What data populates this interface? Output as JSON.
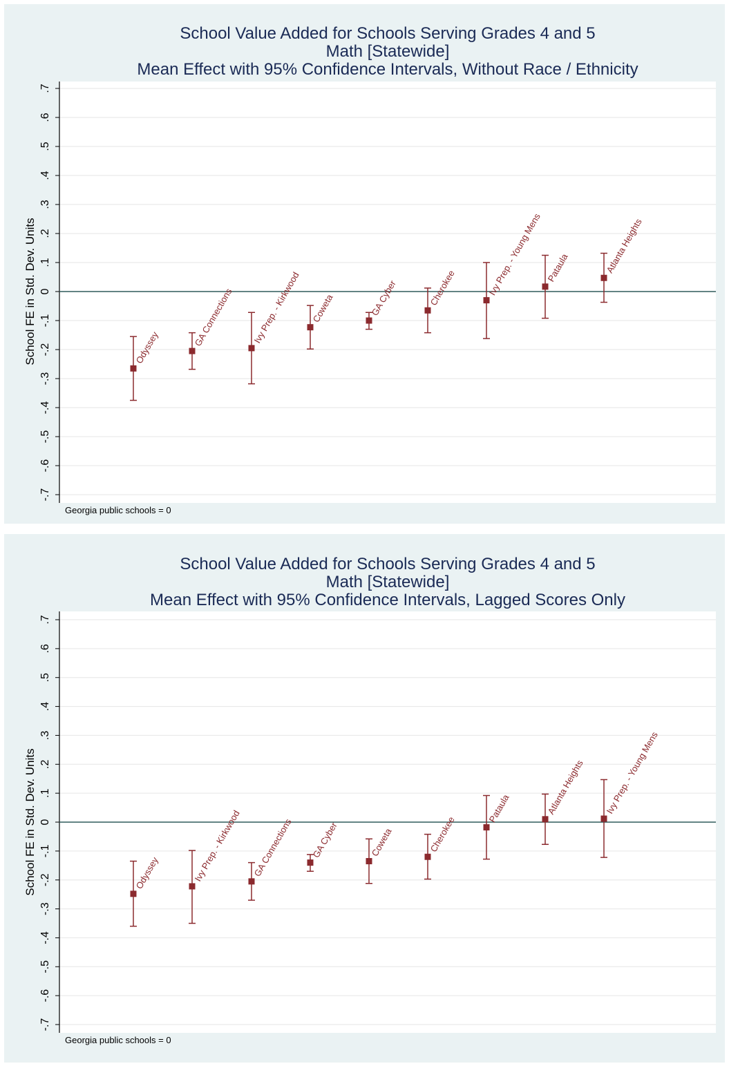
{
  "chart_data": [
    {
      "type": "scatter",
      "title": [
        "School Value Added for Schools Serving Grades 4 and 5",
        "Math [Statewide]",
        "Mean Effect with 95% Confidence Intervals, Without Race / Ethnicity"
      ],
      "ylabel": "School FE in Std. Dev. Units",
      "note": "Georgia public schools = 0",
      "ylim": [
        -0.7,
        0.7
      ],
      "yticks": [
        ".7",
        ".6",
        ".5",
        ".4",
        ".3",
        ".2",
        ".1",
        "0",
        "-.1",
        "-.2",
        "-.3",
        "-.4",
        "-.5",
        "-.6",
        "-.7"
      ],
      "reference_line": 0,
      "grid": true,
      "colors": {
        "marker": "#8b2a2e",
        "reference": "#2e5a5a",
        "grid": "#e6e6e6",
        "plot_bg": "#ffffff",
        "outer_bg": "#eaf2f3"
      },
      "points": [
        {
          "label": "Odyssey",
          "mean": -0.265,
          "lo": -0.375,
          "hi": -0.155
        },
        {
          "label": "GA Connections",
          "mean": -0.205,
          "lo": -0.268,
          "hi": -0.142
        },
        {
          "label": "Ivy Prep. - Kirkwood",
          "mean": -0.195,
          "lo": -0.318,
          "hi": -0.072
        },
        {
          "label": "Coweta",
          "mean": -0.123,
          "lo": -0.198,
          "hi": -0.048
        },
        {
          "label": "GA Cyber",
          "mean": -0.1,
          "lo": -0.13,
          "hi": -0.072
        },
        {
          "label": "Cherokee",
          "mean": -0.065,
          "lo": -0.142,
          "hi": 0.012
        },
        {
          "label": "Ivy Prep. - Young Mens",
          "mean": -0.03,
          "lo": -0.162,
          "hi": 0.1
        },
        {
          "label": "Pataula",
          "mean": 0.017,
          "lo": -0.092,
          "hi": 0.125
        },
        {
          "label": "Atlanta Heights",
          "mean": 0.047,
          "lo": -0.037,
          "hi": 0.132
        }
      ]
    },
    {
      "type": "scatter",
      "title": [
        "School Value Added for Schools Serving Grades 4 and 5",
        "Math [Statewide]",
        "Mean Effect with 95% Confidence Intervals, Lagged Scores Only"
      ],
      "ylabel": "School FE in Std. Dev. Units",
      "note": "Georgia public schools = 0",
      "ylim": [
        -0.7,
        0.7
      ],
      "yticks": [
        ".7",
        ".6",
        ".5",
        ".4",
        ".3",
        ".2",
        ".1",
        "0",
        "-.1",
        "-.2",
        "-.3",
        "-.4",
        "-.5",
        "-.6",
        "-.7"
      ],
      "reference_line": 0,
      "grid": true,
      "colors": {
        "marker": "#8b2a2e",
        "reference": "#2e5a5a",
        "grid": "#e6e6e6",
        "plot_bg": "#ffffff",
        "outer_bg": "#eaf2f3"
      },
      "points": [
        {
          "label": "Odyssey",
          "mean": -0.248,
          "lo": -0.36,
          "hi": -0.135
        },
        {
          "label": "Ivy Prep. - Kirkwood",
          "mean": -0.222,
          "lo": -0.35,
          "hi": -0.098
        },
        {
          "label": "GA Connections",
          "mean": -0.205,
          "lo": -0.27,
          "hi": -0.14
        },
        {
          "label": "GA Cyber",
          "mean": -0.14,
          "lo": -0.17,
          "hi": -0.112
        },
        {
          "label": "Coweta",
          "mean": -0.135,
          "lo": -0.212,
          "hi": -0.058
        },
        {
          "label": "Cherokee",
          "mean": -0.12,
          "lo": -0.197,
          "hi": -0.042
        },
        {
          "label": "Pataula",
          "mean": -0.018,
          "lo": -0.128,
          "hi": 0.092
        },
        {
          "label": "Atlanta Heights",
          "mean": 0.01,
          "lo": -0.077,
          "hi": 0.097
        },
        {
          "label": "Ivy Prep. - Young Mens",
          "mean": 0.012,
          "lo": -0.122,
          "hi": 0.147
        }
      ]
    }
  ]
}
